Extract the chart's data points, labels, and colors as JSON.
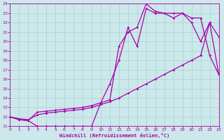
{
  "xlabel": "Windchill (Refroidissement éolien,°C)",
  "xlim": [
    0,
    23
  ],
  "ylim": [
    11,
    24
  ],
  "yticks": [
    11,
    12,
    13,
    14,
    15,
    16,
    17,
    18,
    19,
    20,
    21,
    22,
    23,
    24
  ],
  "xticks": [
    0,
    1,
    2,
    3,
    4,
    5,
    6,
    7,
    8,
    9,
    10,
    11,
    12,
    13,
    14,
    15,
    16,
    17,
    18,
    19,
    20,
    21,
    22,
    23
  ],
  "bg_color": "#cce8ea",
  "grid_color": "#b0d8da",
  "line_color": "#aa00aa",
  "curve1_x": [
    0,
    1,
    2,
    3,
    4,
    5,
    6,
    7,
    8,
    9,
    10,
    11,
    12,
    13,
    14,
    15,
    16,
    17,
    18,
    19,
    20,
    21,
    22,
    23
  ],
  "curve1_y": [
    12.0,
    11.7,
    11.6,
    11.0,
    11.0,
    11.0,
    11.0,
    11.0,
    11.0,
    11.0,
    13.5,
    15.5,
    18.0,
    21.5,
    19.5,
    23.5,
    23.0,
    23.0,
    22.5,
    23.0,
    22.5,
    22.5,
    18.5,
    16.5
  ],
  "curve2_x": [
    0,
    1,
    2,
    3,
    4,
    5,
    6,
    7,
    8,
    9,
    10,
    11,
    12,
    13,
    14,
    15,
    16,
    17,
    18,
    19,
    20,
    21,
    22,
    23
  ],
  "curve2_y": [
    12.0,
    11.7,
    11.6,
    12.5,
    12.6,
    12.7,
    12.8,
    12.9,
    13.0,
    13.2,
    13.5,
    13.8,
    19.5,
    21.0,
    21.5,
    24.0,
    23.2,
    23.0,
    23.0,
    23.0,
    22.0,
    20.0,
    22.0,
    20.5
  ],
  "curve3_x": [
    0,
    1,
    2,
    3,
    4,
    5,
    6,
    7,
    8,
    9,
    10,
    11,
    12,
    13,
    14,
    15,
    16,
    17,
    18,
    19,
    20,
    21,
    22,
    23
  ],
  "curve3_y": [
    12.0,
    11.8,
    11.7,
    12.2,
    12.4,
    12.5,
    12.6,
    12.7,
    12.8,
    13.0,
    13.3,
    13.6,
    14.0,
    14.5,
    15.0,
    15.5,
    16.0,
    16.5,
    17.0,
    17.5,
    18.0,
    18.5,
    22.0,
    16.5
  ]
}
